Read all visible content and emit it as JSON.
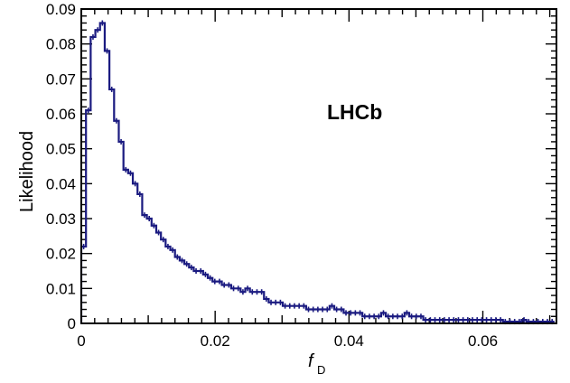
{
  "chart_data": {
    "type": "histogram",
    "annotation": "LHCb",
    "xlabel": "f",
    "xlabel_subscript": "D",
    "ylabel": "Likelihood",
    "xlim": [
      0,
      0.071
    ],
    "ylim": [
      0,
      0.09
    ],
    "x_ticks": [
      0,
      0.02,
      0.04,
      0.06
    ],
    "x_tick_labels": [
      "0",
      "0.02",
      "0.04",
      "0.06"
    ],
    "y_ticks": [
      0,
      0.01,
      0.02,
      0.03,
      0.04,
      0.05,
      0.06,
      0.07,
      0.08,
      0.09
    ],
    "y_tick_labels": [
      "0",
      "0.01",
      "0.02",
      "0.03",
      "0.04",
      "0.05",
      "0.06",
      "0.07",
      "0.08",
      "0.09"
    ],
    "grid": false,
    "bin_width": 0.0007,
    "bin_edges_start": 0,
    "values": [
      0.022,
      0.061,
      0.082,
      0.084,
      0.086,
      0.078,
      0.067,
      0.058,
      0.052,
      0.044,
      0.043,
      0.04,
      0.037,
      0.031,
      0.03,
      0.028,
      0.026,
      0.024,
      0.022,
      0.021,
      0.019,
      0.018,
      0.017,
      0.016,
      0.015,
      0.015,
      0.014,
      0.013,
      0.012,
      0.012,
      0.011,
      0.011,
      0.01,
      0.01,
      0.009,
      0.01,
      0.009,
      0.009,
      0.009,
      0.007,
      0.006,
      0.006,
      0.006,
      0.005,
      0.005,
      0.005,
      0.005,
      0.005,
      0.004,
      0.004,
      0.004,
      0.004,
      0.004,
      0.005,
      0.004,
      0.004,
      0.003,
      0.003,
      0.003,
      0.003,
      0.002,
      0.002,
      0.002,
      0.002,
      0.003,
      0.002,
      0.002,
      0.002,
      0.002,
      0.003,
      0.002,
      0.002,
      0.002,
      0.001,
      0.001,
      0.001,
      0.001,
      0.001,
      0.001,
      0.001,
      0.001,
      0.001,
      0.001,
      0.001,
      0.001,
      0.001,
      0.001,
      0.001,
      0.001,
      0.001,
      0.0005,
      0.0005,
      0.0005,
      0.0005,
      0.001,
      0.0005,
      0.0005,
      0.0005,
      0.0005,
      0.0005,
      0.0005
    ]
  },
  "colors": {
    "line": "#1a1a80",
    "axis": "#000000"
  }
}
